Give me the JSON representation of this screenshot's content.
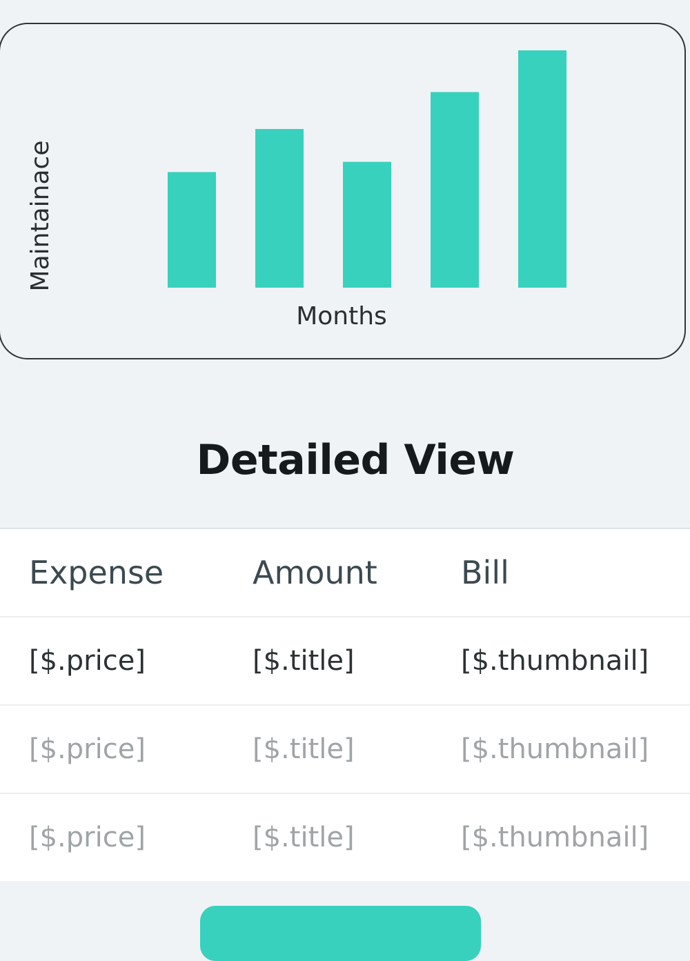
{
  "chart_data": {
    "type": "bar",
    "title": "",
    "xlabel": "Months",
    "ylabel": "Maintainace",
    "categories": [
      "",
      "",
      "",
      "",
      ""
    ],
    "values": [
      169,
      232,
      184,
      286,
      347
    ],
    "ylim": [
      0,
      350
    ],
    "grid": false,
    "axes_visible": false,
    "bar_color": "#38d1bd"
  },
  "detail": {
    "title": "Detailed View",
    "headers": [
      "Expense",
      "Amount",
      "Bill"
    ],
    "rows": [
      [
        "[$.price]",
        "[$.title]",
        "[$.thumbnail]"
      ],
      [
        "[$.price]",
        "[$.title]",
        "[$.thumbnail]"
      ],
      [
        "[$.price]",
        "[$.title]",
        "[$.thumbnail]"
      ]
    ]
  },
  "colors": {
    "accent": "#38d1bd",
    "background": "#eff3f6"
  }
}
